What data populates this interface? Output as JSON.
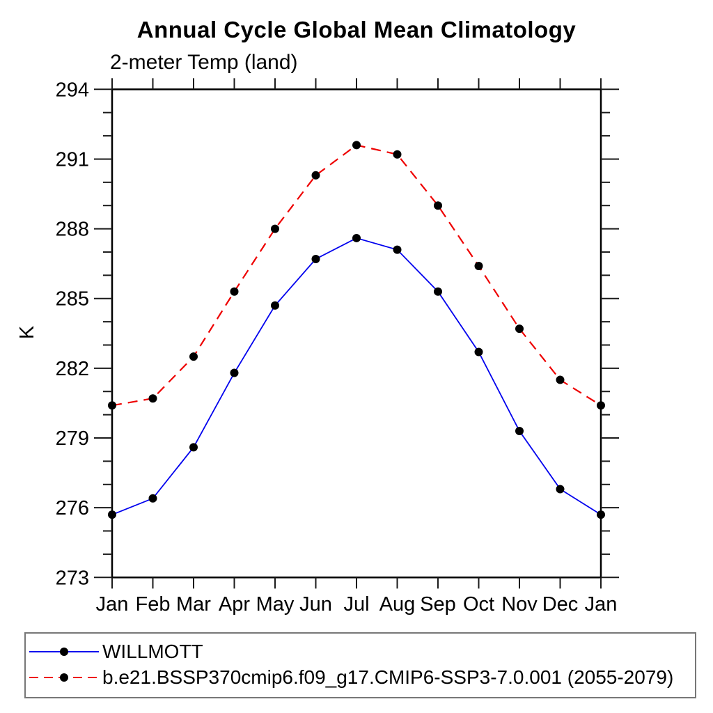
{
  "title": "Annual Cycle Global Mean Climatology",
  "subtitle": "2-meter Temp (land)",
  "y_axis_label": "K",
  "colors": {
    "willmott_line": "#0000ee",
    "model_line": "#ee0000",
    "marker": "#000000",
    "axis": "#000000"
  },
  "legend": {
    "position": "bottom",
    "entries": [
      {
        "label": "WILLMOTT",
        "color": "#0000ee",
        "line_style": "solid",
        "marker": "filled-circle"
      },
      {
        "label": "b.e21.BSSP370cmip6.f09_g17.CMIP6-SSP3-7.0.001 (2055-2079)",
        "color": "#ee0000",
        "line_style": "dashed",
        "marker": "filled-circle"
      }
    ]
  },
  "chart_data": {
    "type": "line",
    "title": "Annual Cycle Global Mean Climatology",
    "subtitle": "2-meter Temp (land)",
    "xlabel": "",
    "ylabel": "K",
    "x": [
      "Jan",
      "Feb",
      "Mar",
      "Apr",
      "May",
      "Jun",
      "Jul",
      "Aug",
      "Sep",
      "Oct",
      "Nov",
      "Dec",
      "Jan"
    ],
    "ylim": [
      273,
      294
    ],
    "y_major_ticks": [
      273,
      276,
      279,
      282,
      285,
      288,
      291,
      294
    ],
    "y_minor_step": 1,
    "grid": false,
    "legend_position": "bottom",
    "series": [
      {
        "name": "WILLMOTT",
        "color": "#0000ee",
        "line_style": "solid",
        "marker": "filled-circle",
        "marker_color": "#000000",
        "values": [
          275.7,
          276.4,
          278.6,
          281.8,
          284.7,
          286.7,
          287.6,
          287.1,
          285.3,
          282.7,
          279.3,
          276.8,
          275.7
        ]
      },
      {
        "name": "b.e21.BSSP370cmip6.f09_g17.CMIP6-SSP3-7.0.001 (2055-2079)",
        "color": "#ee0000",
        "line_style": "dashed",
        "marker": "filled-circle",
        "marker_color": "#000000",
        "values": [
          280.4,
          280.7,
          282.5,
          285.3,
          288.0,
          290.3,
          291.6,
          291.2,
          289.0,
          286.4,
          283.7,
          281.5,
          280.4
        ]
      }
    ]
  }
}
